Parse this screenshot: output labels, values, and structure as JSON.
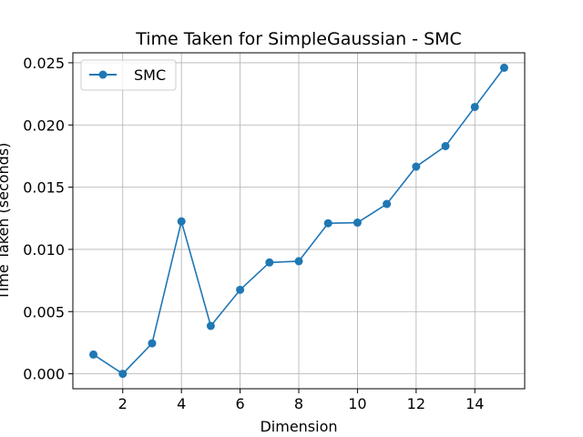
{
  "chart_data": {
    "type": "line",
    "title": "Time Taken for SimpleGaussian - SMC",
    "xlabel": "Dimension",
    "ylabel": "Time Taken (seconds)",
    "xlim": [
      0.3,
      15.7
    ],
    "ylim": [
      -0.0012,
      0.0258
    ],
    "xticks": [
      2,
      4,
      6,
      8,
      10,
      12,
      14
    ],
    "xtick_labels": [
      "2",
      "4",
      "6",
      "8",
      "10",
      "12",
      "14"
    ],
    "yticks": [
      0.0,
      0.005,
      0.01,
      0.015,
      0.02,
      0.025
    ],
    "ytick_labels": [
      "0.000",
      "0.005",
      "0.010",
      "0.015",
      "0.020",
      "0.025"
    ],
    "grid": true,
    "legend": "upper-left",
    "series": [
      {
        "name": "SMC",
        "color": "#1f77b4",
        "marker": "circle",
        "x": [
          1,
          2,
          3,
          4,
          5,
          6,
          7,
          8,
          9,
          10,
          11,
          12,
          13,
          14,
          15
        ],
        "y": [
          0.00155,
          0.0,
          0.00245,
          0.01225,
          0.00385,
          0.00675,
          0.00895,
          0.00905,
          0.0121,
          0.01215,
          0.01365,
          0.01665,
          0.0183,
          0.02145,
          0.0246
        ]
      }
    ]
  }
}
